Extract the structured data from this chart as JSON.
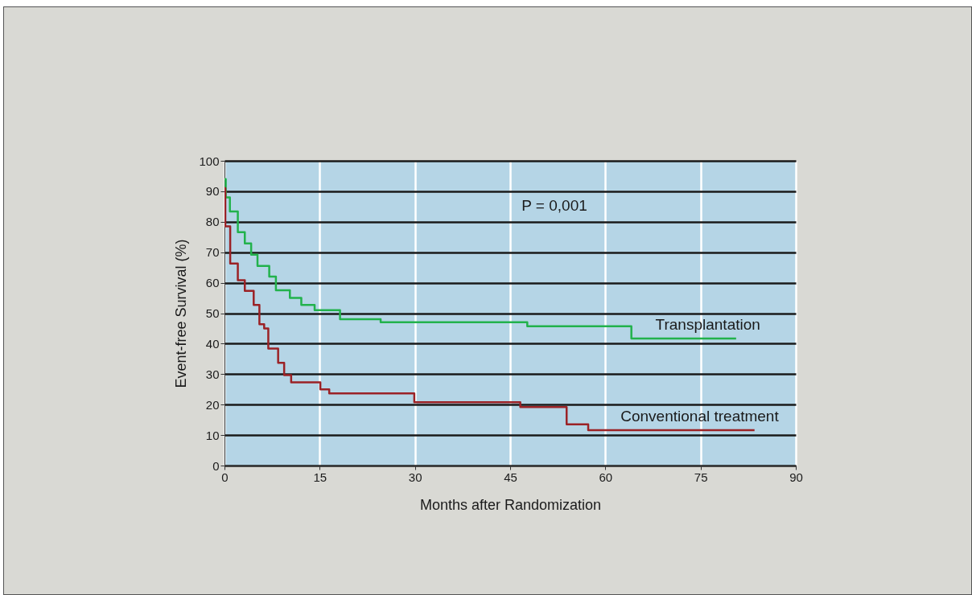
{
  "chart_data": {
    "type": "step",
    "xlabel": "Months after Randomization",
    "ylabel": "Event-free Survival (%)",
    "series": [
      {
        "name": "Transplantation",
        "color": "#22b24c",
        "x": [
          0,
          0.2,
          0.85,
          2.1,
          3.2,
          4.2,
          5.2,
          7.05,
          8.1,
          10.3,
          12.1,
          14.2,
          18.2,
          24.6,
          47.7,
          64.1,
          80.6
        ],
        "values": [
          94,
          88,
          83.4,
          76.6,
          72.9,
          69.2,
          65.5,
          62,
          57.5,
          55,
          52.7,
          51,
          48,
          47,
          45.7,
          41.7,
          41.7
        ]
      },
      {
        "name": "Conventional treatment",
        "color": "#9b2226",
        "x": [
          0,
          0.13,
          0.9,
          2.1,
          3.2,
          4.6,
          5.5,
          6.25,
          6.9,
          8.45,
          9.4,
          10.5,
          15.1,
          16.5,
          29.9,
          46.6,
          53.9,
          57.3,
          83.5
        ],
        "values": [
          91,
          78.5,
          66.3,
          60.8,
          57.3,
          52.7,
          46.4,
          45,
          38.4,
          33.7,
          29.7,
          27.3,
          25,
          23.7,
          20.8,
          19.2,
          13.5,
          11.6,
          11.6
        ]
      }
    ],
    "xlim": [
      0,
      90
    ],
    "xticks": [
      0,
      15,
      30,
      45,
      60,
      75,
      90
    ],
    "ylim": [
      0,
      100
    ],
    "yticks": [
      0,
      10,
      20,
      30,
      40,
      50,
      60,
      70,
      80,
      90,
      100
    ],
    "grid": true,
    "legend": false,
    "annotations": [
      "P = 0,001"
    ]
  }
}
